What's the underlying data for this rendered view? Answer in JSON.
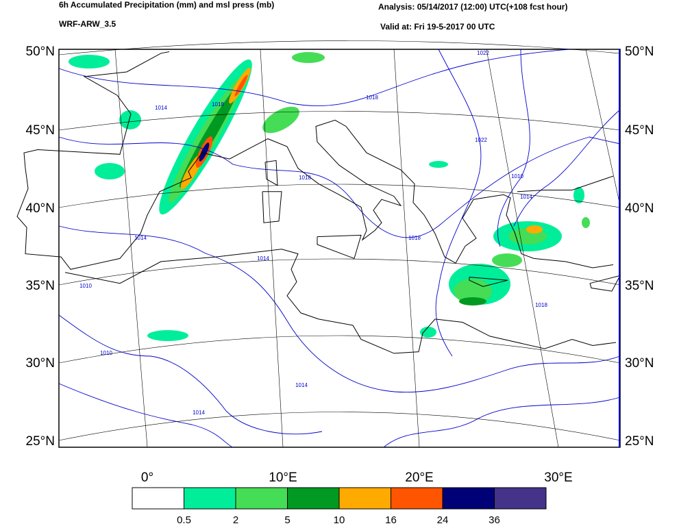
{
  "header": {
    "title": "6h Accumulated Precipitation (mm) and msl press (mb)",
    "model": "WRF-ARW_3.5",
    "analysis": "Analysis: 05/14/2017 (12:00) UTC(+108 fcst hour)",
    "valid": "Valid at: Fri 19-5-2017 00 UTC"
  },
  "map": {
    "lat_labels": [
      "50°N",
      "45°N",
      "40°N",
      "35°N",
      "30°N",
      "25°N"
    ],
    "lon_labels": [
      "0°",
      "10°E",
      "20°E",
      "30°E"
    ],
    "isobar_labels": [
      "1022",
      "1018",
      "1014",
      "1018",
      "1018",
      "1014",
      "1014",
      "1010",
      "1010",
      "1014",
      "1014",
      "1018",
      "1010",
      "1014",
      "1018",
      "1022"
    ]
  },
  "colorbar": {
    "colors": [
      "#ffffff",
      "#00ee99",
      "#44dd55",
      "#009922",
      "#ffaa00",
      "#ff5500",
      "#000077",
      "#443388"
    ],
    "labels": [
      "0.5",
      "2",
      "5",
      "10",
      "16",
      "24",
      "36"
    ]
  }
}
